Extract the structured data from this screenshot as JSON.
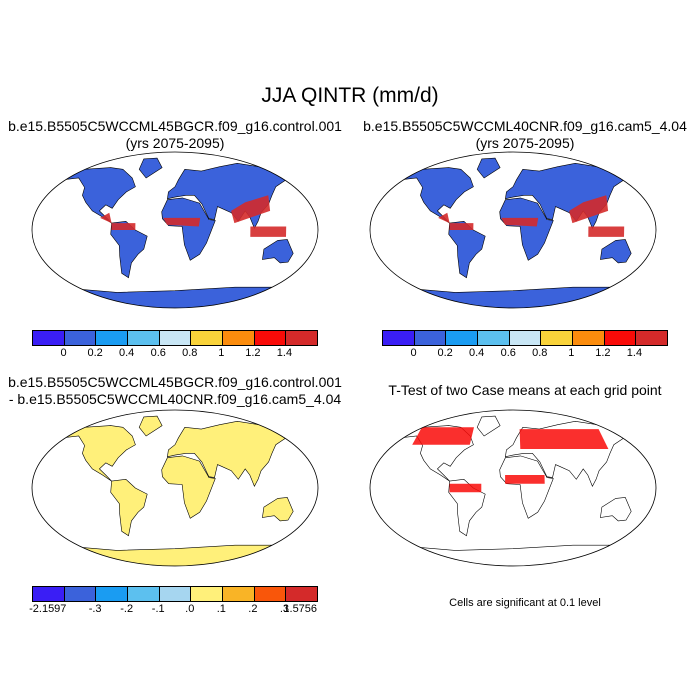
{
  "title": "JJA QINTR (mm/d)",
  "panels": {
    "control": {
      "line1": "b.e15.B5505C5WCCML45BGCR.f09_g16.control.001",
      "line2": "(yrs 2075-2095)"
    },
    "cam5": {
      "line1": "b.e15.B5505C5WCCML40CNR.f09_g16.cam5_4.04",
      "line2": "(yrs 2075-2095)"
    },
    "diff": {
      "line1": "b.e15.B5505C5WCCML45BGCR.f09_g16.control.001",
      "line2": "- b.e15.B5505C5WCCML40CNR.f09_g16.cam5_4.04"
    },
    "ttest": {
      "title": "T-Test of two Case means at each grid point",
      "note": "Cells are significant at 0.1 level"
    }
  },
  "colorbar_main": {
    "colors": [
      "#3a1ef5",
      "#3b62db",
      "#1a9cf2",
      "#5cc0ef",
      "#c8e6f5",
      "#f9d33a",
      "#fb8c0d",
      "#f90b08",
      "#d42a2a"
    ],
    "labels": [
      "0",
      "0.2",
      "0.4",
      "0.6",
      "0.8",
      "1",
      "1.2",
      "1.4"
    ]
  },
  "colorbar_diff": {
    "colors": [
      "#3a1ef5",
      "#3b62db",
      "#1a9cf2",
      "#5cc0ef",
      "#a6d6f0",
      "#fff07a",
      "#f9b426",
      "#f9560a",
      "#d42a2a"
    ],
    "labels": [
      "-2.1597",
      "-.3",
      "-.2",
      "-.1",
      ".0",
      ".1",
      ".2",
      ".3",
      "1.5756"
    ]
  },
  "map_colors": {
    "ocean": "#ffffff",
    "control_land": "#3b62db",
    "wet": "#d42a2a",
    "diff_land": "#fff07a",
    "ttest": "#f90b08"
  }
}
